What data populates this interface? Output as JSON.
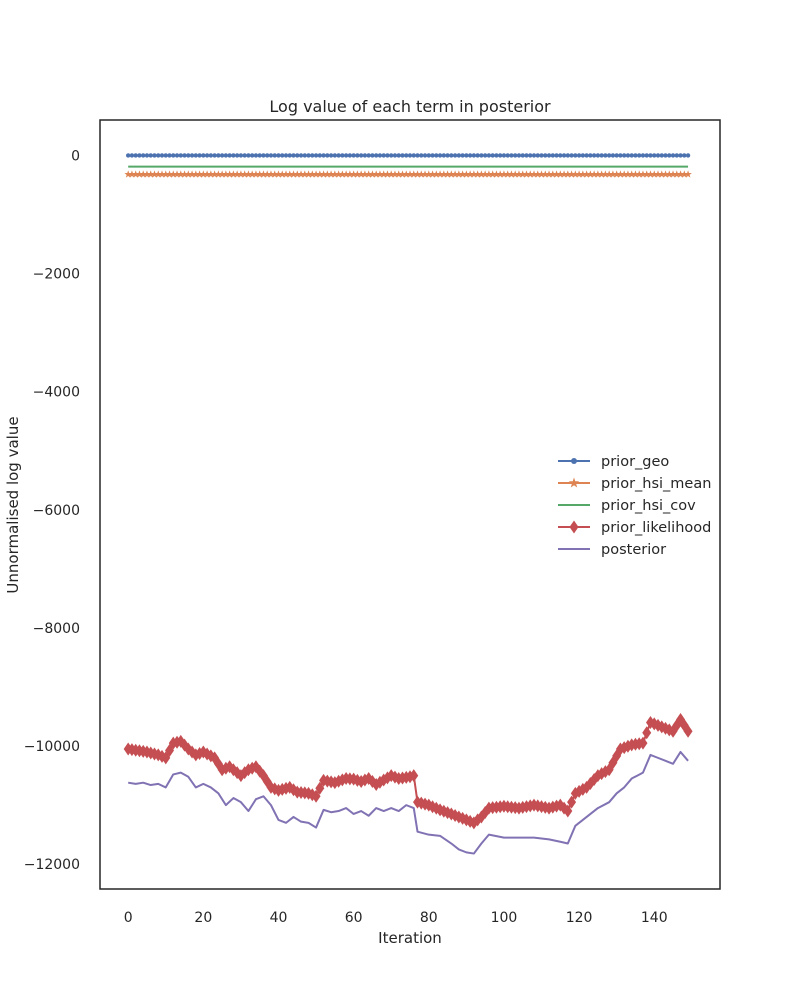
{
  "chart_data": {
    "type": "line",
    "title": "Log value of each term in posterior",
    "xlabel": "Iteration",
    "ylabel": "Unnormalised log value",
    "xlim": [
      -7.5,
      157.5
    ],
    "ylim": [
      -12420,
      600
    ],
    "xticks": [
      0,
      20,
      40,
      60,
      80,
      100,
      120,
      140
    ],
    "yticks": [
      0,
      -2000,
      -4000,
      -6000,
      -8000,
      -10000,
      -12000
    ],
    "grid": false,
    "legend_position": "center-right",
    "series": [
      {
        "name": "prior_geo",
        "color": "#4c72b0",
        "marker": "point",
        "constant": 0,
        "x_start": 0,
        "x_end": 149
      },
      {
        "name": "prior_hsi_mean",
        "color": "#dd8452",
        "marker": "star",
        "constant": -320,
        "x_start": 0,
        "x_end": 149
      },
      {
        "name": "prior_hsi_cov",
        "color": "#55a868",
        "marker": "none",
        "constant": -190,
        "x_start": 0,
        "x_end": 149
      },
      {
        "name": "prior_likelihood",
        "color": "#c44e52",
        "marker": "diamond",
        "x": [
          0,
          5,
          8,
          10,
          12,
          14,
          16,
          18,
          20,
          23,
          25,
          27,
          30,
          32,
          34,
          36,
          38,
          40,
          43,
          45,
          48,
          50,
          52,
          55,
          58,
          60,
          62,
          64,
          66,
          70,
          72,
          75,
          76,
          77,
          80,
          83,
          86,
          90,
          92,
          94,
          96,
          100,
          104,
          108,
          112,
          115,
          117,
          119,
          122,
          125,
          128,
          131,
          134,
          137,
          139,
          141,
          143,
          145,
          147,
          149
        ],
        "values": [
          -10050,
          -10100,
          -10150,
          -10200,
          -9950,
          -9920,
          -10050,
          -10150,
          -10100,
          -10200,
          -10400,
          -10350,
          -10500,
          -10400,
          -10350,
          -10500,
          -10700,
          -10750,
          -10700,
          -10780,
          -10800,
          -10850,
          -10580,
          -10620,
          -10550,
          -10560,
          -10600,
          -10550,
          -10650,
          -10500,
          -10550,
          -10520,
          -10500,
          -10950,
          -11000,
          -11080,
          -11150,
          -11250,
          -11300,
          -11200,
          -11050,
          -11020,
          -11050,
          -11000,
          -11050,
          -11000,
          -11100,
          -10800,
          -10700,
          -10500,
          -10400,
          -10050,
          -9980,
          -9950,
          -9600,
          -9650,
          -9700,
          -9750,
          -9550,
          -9750
        ]
      },
      {
        "name": "posterior",
        "color": "#8172b3",
        "marker": "none",
        "x": [
          0,
          2,
          4,
          6,
          8,
          10,
          12,
          14,
          16,
          18,
          20,
          22,
          24,
          26,
          28,
          30,
          32,
          34,
          36,
          38,
          40,
          42,
          44,
          46,
          48,
          50,
          52,
          54,
          56,
          58,
          60,
          62,
          64,
          66,
          68,
          70,
          72,
          74,
          76,
          77,
          80,
          83,
          86,
          88,
          90,
          92,
          94,
          96,
          100,
          104,
          108,
          112,
          115,
          117,
          119,
          122,
          125,
          128,
          130,
          132,
          134,
          137,
          139,
          141,
          143,
          145,
          147,
          149
        ],
        "values": [
          -10620,
          -10640,
          -10620,
          -10660,
          -10640,
          -10700,
          -10480,
          -10450,
          -10520,
          -10700,
          -10640,
          -10700,
          -10800,
          -11000,
          -10880,
          -10950,
          -11100,
          -10900,
          -10850,
          -11000,
          -11250,
          -11300,
          -11200,
          -11280,
          -11300,
          -11380,
          -11080,
          -11120,
          -11100,
          -11050,
          -11150,
          -11100,
          -11180,
          -11050,
          -11100,
          -11050,
          -11100,
          -11000,
          -11050,
          -11450,
          -11500,
          -11520,
          -11650,
          -11750,
          -11800,
          -11820,
          -11650,
          -11500,
          -11550,
          -11550,
          -11550,
          -11580,
          -11620,
          -11650,
          -11350,
          -11200,
          -11050,
          -10950,
          -10800,
          -10700,
          -10550,
          -10450,
          -10150,
          -10200,
          -10250,
          -10300,
          -10100,
          -10250
        ]
      }
    ]
  }
}
